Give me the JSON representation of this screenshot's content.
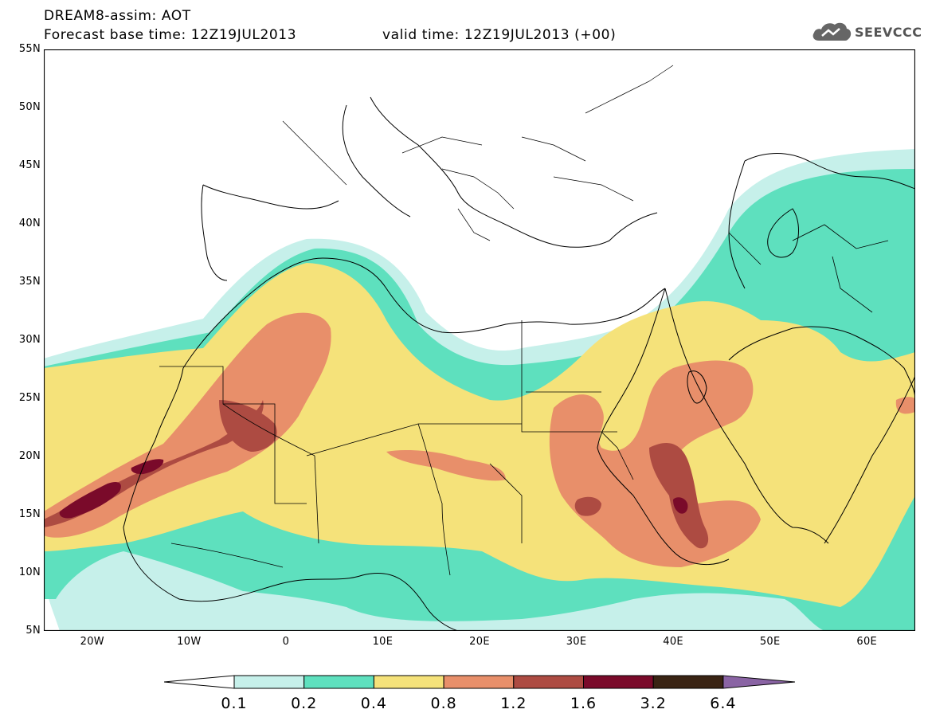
{
  "header": {
    "line1": "DREAM8-assim: AOT",
    "line2": "Forecast base time: 12Z19JUL2013",
    "line3": "valid time: 12Z19JUL2013 (+00)"
  },
  "logo": {
    "text": "SEEVCCC",
    "icon": "cloud-icon",
    "color": "#555555"
  },
  "map": {
    "lat_labels": [
      "55N",
      "50N",
      "45N",
      "40N",
      "35N",
      "30N",
      "25N",
      "20N",
      "15N",
      "10N",
      "5N"
    ],
    "lon_labels": [
      "20W",
      "10W",
      "0",
      "10E",
      "20E",
      "30E",
      "40E",
      "50E",
      "60E"
    ],
    "lat_range": [
      5,
      55
    ],
    "lon_range": [
      -25,
      65
    ]
  },
  "legend": {
    "thresholds": [
      "0.1",
      "0.2",
      "0.4",
      "0.8",
      "1.2",
      "1.6",
      "3.2",
      "6.4"
    ],
    "colors": [
      "#ffffff",
      "#c6f0ea",
      "#5ee0be",
      "#f5e27a",
      "#e88f6a",
      "#ad4b42",
      "#7a0a2a",
      "#3a2414",
      "#8a64a4"
    ]
  }
}
